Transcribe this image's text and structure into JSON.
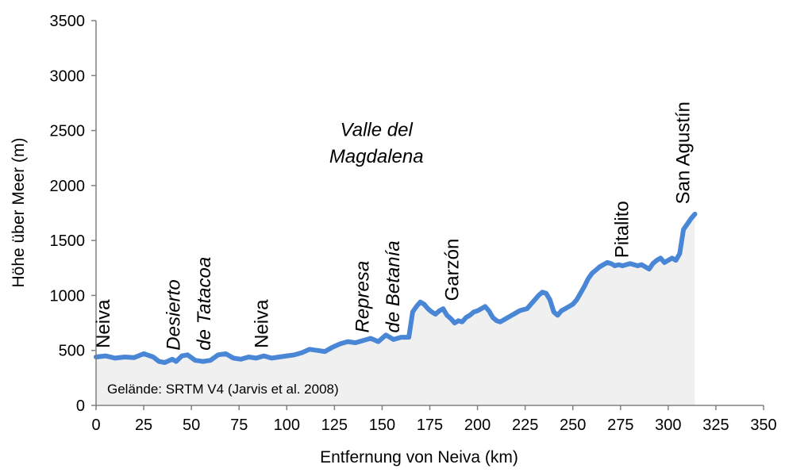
{
  "chart_data": {
    "type": "area",
    "xlabel": "Entfernung von Neiva (km)",
    "ylabel": "Höhe über Meer (m)",
    "xlim": [
      0,
      350
    ],
    "ylim": [
      0,
      3500
    ],
    "xticks": [
      0,
      25,
      50,
      75,
      100,
      125,
      150,
      175,
      200,
      225,
      250,
      275,
      300,
      325,
      350
    ],
    "yticks": [
      0,
      500,
      1000,
      1500,
      2000,
      2500,
      3000,
      3500
    ],
    "grid": false,
    "line_color": "#4a86d6",
    "fill_color": "#f0f0f0",
    "x": [
      0,
      5,
      10,
      15,
      20,
      25,
      30,
      33,
      36,
      40,
      42,
      45,
      48,
      52,
      56,
      60,
      64,
      68,
      72,
      76,
      80,
      84,
      88,
      92,
      96,
      100,
      104,
      108,
      112,
      116,
      120,
      124,
      128,
      132,
      136,
      140,
      144,
      148,
      152,
      156,
      160,
      164,
      166,
      168,
      170,
      172,
      174,
      176,
      178,
      180,
      182,
      184,
      186,
      188,
      190,
      192,
      194,
      196,
      198,
      200,
      202,
      204,
      206,
      208,
      210,
      212,
      214,
      216,
      218,
      220,
      222,
      224,
      226,
      228,
      230,
      232,
      234,
      236,
      238,
      240,
      242,
      244,
      246,
      248,
      250,
      252,
      254,
      256,
      258,
      260,
      262,
      264,
      266,
      268,
      270,
      272,
      274,
      276,
      278,
      280,
      282,
      284,
      286,
      288,
      290,
      292,
      294,
      296,
      298,
      300,
      302,
      304,
      306,
      308,
      310,
      312,
      314
    ],
    "y": [
      440,
      450,
      430,
      440,
      435,
      470,
      440,
      400,
      390,
      420,
      400,
      450,
      460,
      410,
      400,
      410,
      460,
      470,
      430,
      420,
      440,
      430,
      450,
      430,
      440,
      450,
      460,
      480,
      510,
      500,
      490,
      530,
      560,
      580,
      570,
      590,
      610,
      580,
      640,
      600,
      620,
      620,
      850,
      900,
      940,
      920,
      880,
      850,
      830,
      860,
      880,
      820,
      790,
      750,
      770,
      760,
      800,
      820,
      850,
      860,
      880,
      900,
      860,
      800,
      770,
      760,
      780,
      800,
      820,
      840,
      860,
      870,
      880,
      920,
      960,
      1000,
      1030,
      1020,
      960,
      850,
      820,
      860,
      880,
      900,
      920,
      960,
      1020,
      1080,
      1150,
      1200,
      1230,
      1260,
      1280,
      1300,
      1290,
      1270,
      1280,
      1270,
      1280,
      1290,
      1280,
      1270,
      1280,
      1260,
      1240,
      1290,
      1320,
      1340,
      1300,
      1320,
      1340,
      1320,
      1380,
      1600,
      1650,
      1700,
      1740
    ],
    "annotations": [
      {
        "text": "Neiva",
        "x": 7,
        "y": 520,
        "rotate": -90,
        "italic": false
      },
      {
        "text": "Desierto",
        "x": 44,
        "y": 500,
        "rotate": -90,
        "italic": true
      },
      {
        "text": "de Tatacoa",
        "x": 60,
        "y": 500,
        "rotate": -90,
        "italic": true
      },
      {
        "text": "Neiva",
        "x": 90,
        "y": 520,
        "rotate": -90,
        "italic": false
      },
      {
        "text": "Represa",
        "x": 143,
        "y": 660,
        "rotate": -90,
        "italic": true
      },
      {
        "text": "de Betanía",
        "x": 159,
        "y": 660,
        "rotate": -90,
        "italic": true
      },
      {
        "text": "Garzón",
        "x": 190,
        "y": 950,
        "rotate": -90,
        "italic": false
      },
      {
        "text": "Pitalito",
        "x": 279,
        "y": 1340,
        "rotate": -90,
        "italic": false
      },
      {
        "text": "San Agustín",
        "x": 311,
        "y": 1830,
        "rotate": -90,
        "italic": false
      },
      {
        "text": "Valle del",
        "x": 147,
        "y": 2450,
        "rotate": 0,
        "italic": true
      },
      {
        "text": "Magdalena",
        "x": 147,
        "y": 2210,
        "rotate": 0,
        "italic": true
      }
    ],
    "source_note": "Gelände: SRTM V4 (Jarvis et al. 2008)"
  }
}
